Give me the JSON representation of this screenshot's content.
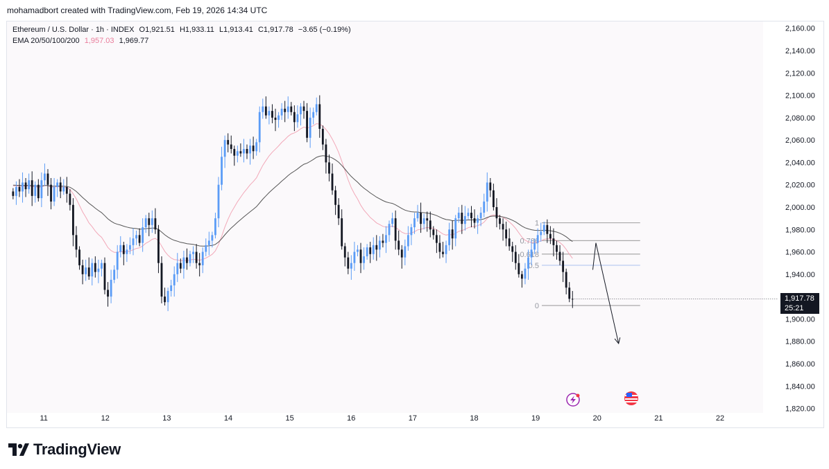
{
  "header": {
    "attribution": "mohamadbort created with TradingView.com, Feb 19, 2026 14:34 UTC"
  },
  "legend": {
    "symbol_line": "Ethereum / U.S. Dollar · 1h · INDEX",
    "open": "O1,921.51",
    "high": "H1,933.11",
    "low": "L1,913.41",
    "close": "C1,917.78",
    "change": "−3.65 (−0.19%)",
    "ema_label": "EMA 20/50/100/200",
    "ema_value_1": "1,957.03",
    "ema_value_2": "1,969.77",
    "ema_value_1_color": "#e97c9a"
  },
  "price_tag": {
    "price": "1,917.78",
    "countdown": "25:21"
  },
  "brand": {
    "name": "TradingView"
  },
  "colors": {
    "up_candle": "#5b9cf6",
    "down_candle": "#131722",
    "ema_fast": "#f2a8b8",
    "ema_slow": "#555555",
    "fib_line": "#a9a9a9",
    "fib_half": "#b3c7ef"
  },
  "chart_data": {
    "type": "candlestick",
    "x_tick_labels": [
      "11",
      "12",
      "13",
      "14",
      "15",
      "16",
      "17",
      "18",
      "19",
      "20",
      "21",
      "22"
    ],
    "y_tick_labels": [
      "2,160.00",
      "2,140.00",
      "2,120.00",
      "2,100.00",
      "2,080.00",
      "2,060.00",
      "2,040.00",
      "2,020.00",
      "2,000.00",
      "1,980.00",
      "1,960.00",
      "1,940.00",
      "1,900.00",
      "1,880.00",
      "1,860.00",
      "1,840.00",
      "1,820.00"
    ],
    "y_ticks": [
      2160,
      2140,
      2120,
      2100,
      2080,
      2060,
      2040,
      2020,
      2000,
      1980,
      1960,
      1940,
      1900,
      1880,
      1860,
      1840,
      1820
    ],
    "ylim": [
      1816,
      2166
    ],
    "xlim": [
      10.4,
      22.7
    ],
    "hourly_closes": [
      2010,
      2018,
      2014,
      2022,
      2016,
      2024,
      2010,
      2020,
      2008,
      2024,
      2030,
      2020,
      2005,
      2018,
      2022,
      2014,
      2018,
      2012,
      2002,
      1975,
      1962,
      1948,
      1940,
      1946,
      1938,
      1950,
      1942,
      1945,
      1950,
      1926,
      1920,
      1935,
      1944,
      1960,
      1966,
      1958,
      1962,
      1966,
      1972,
      1975,
      1968,
      1982,
      1990,
      1984,
      1990,
      1980,
      1950,
      1920,
      1915,
      1925,
      1930,
      1940,
      1950,
      1945,
      1955,
      1950,
      1958,
      1960,
      1950,
      1948,
      1960,
      1966,
      1970,
      1975,
      1990,
      2020,
      2045,
      2060,
      2056,
      2052,
      2046,
      2050,
      2048,
      2052,
      2048,
      2055,
      2050,
      2058,
      2085,
      2090,
      2082,
      2086,
      2080,
      2078,
      2082,
      2088,
      2085,
      2090,
      2085,
      2076,
      2083,
      2090,
      2086,
      2062,
      2080,
      2085,
      2092,
      2070,
      2056,
      2040,
      2030,
      2015,
      2002,
      1990,
      1965,
      1955,
      1945,
      1950,
      1960,
      1962,
      1950,
      1956,
      1964,
      1958,
      1966,
      1962,
      1970,
      1968,
      1975,
      1985,
      1990,
      1970,
      1962,
      1955,
      1965,
      1975,
      1982,
      1990,
      1995,
      1985,
      1990,
      1988,
      1980,
      1975,
      1968,
      1960,
      1958,
      1966,
      1980,
      1972,
      1990,
      1995,
      1985,
      1992,
      1995,
      1990,
      1986,
      1990,
      1995,
      2005,
      2022,
      2015,
      2000,
      1990,
      1985,
      1980,
      1972,
      1965,
      1960,
      1950,
      1940,
      1936,
      1945,
      1955,
      1962,
      1968,
      1975,
      1978,
      1984,
      1976,
      1972,
      1966,
      1960,
      1952,
      1942,
      1928,
      1918,
      1917.78
    ],
    "ema_fast_label": "EMA 20",
    "ema_slow_label": "EMA 50",
    "fib_levels": [
      {
        "label": "1",
        "price": 1986
      },
      {
        "label": "0.786",
        "price": 1970
      },
      {
        "label": "0.618",
        "price": 1958
      },
      {
        "label": "0.5",
        "price": 1948
      },
      {
        "label": "0",
        "price": 1912
      }
    ],
    "fib_x_range": [
      19.1,
      20.7
    ],
    "projection": [
      {
        "x": 19.93,
        "y": 1944
      },
      {
        "x": 19.98,
        "y": 1968
      },
      {
        "x": 20.35,
        "y": 1878
      }
    ],
    "last_price": 1917.78
  }
}
